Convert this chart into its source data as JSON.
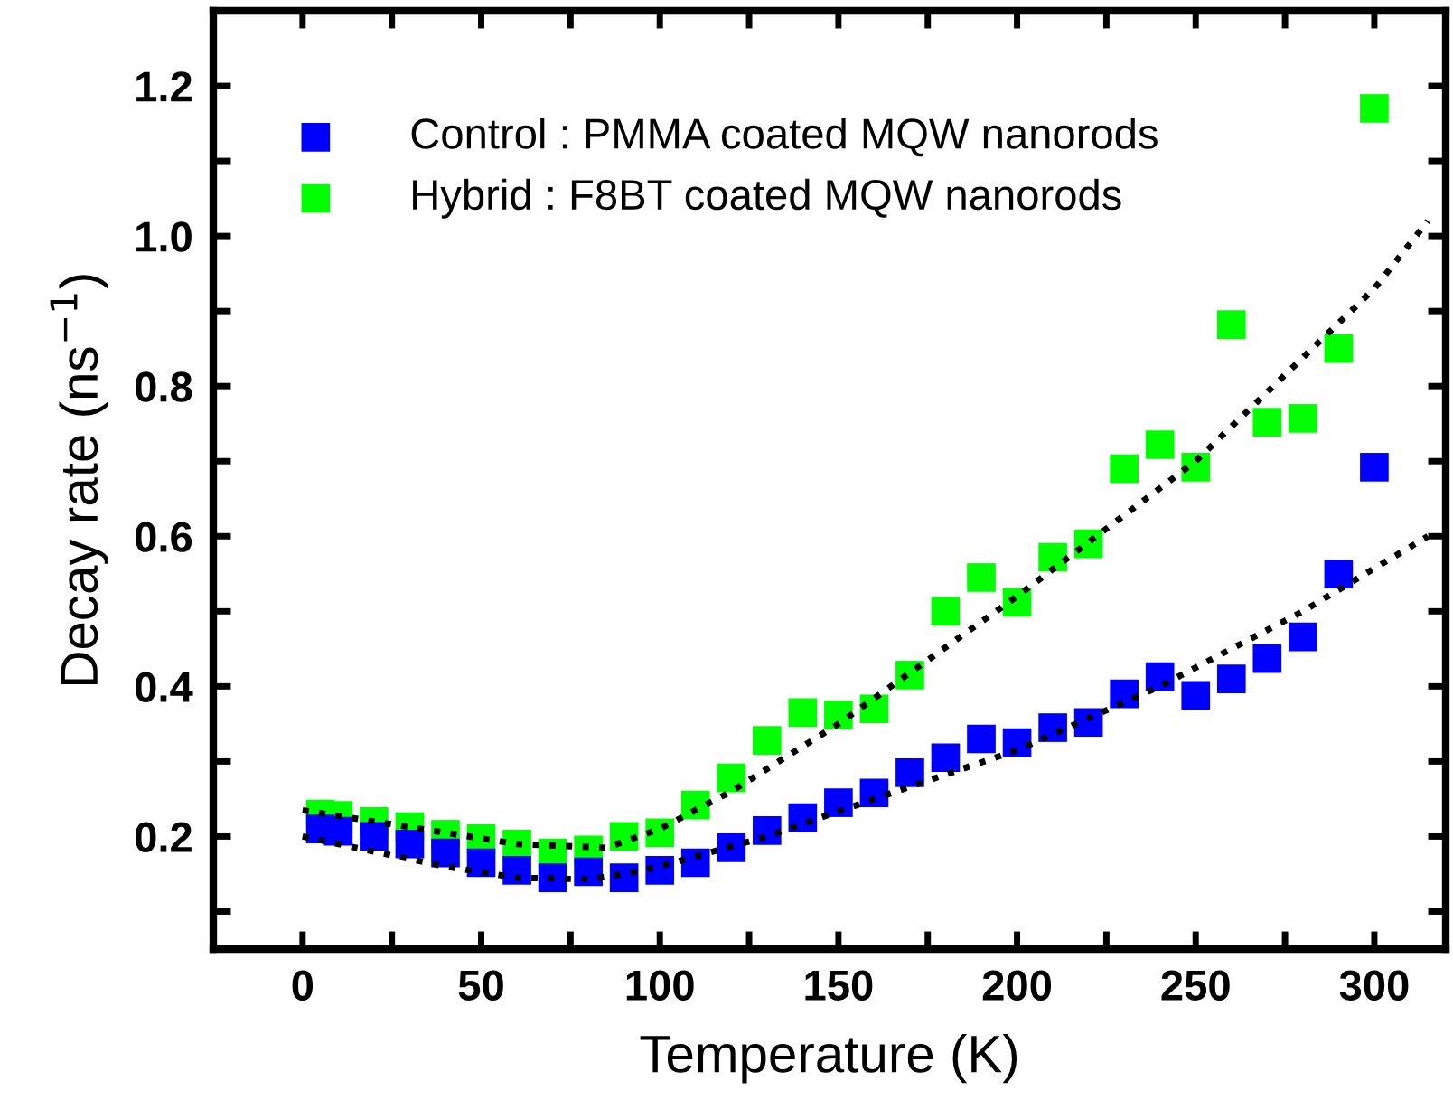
{
  "chart_data": {
    "type": "scatter",
    "xlabel": "Temperature (K)",
    "ylabel": "Decay rate (ns$^{−1}$)",
    "xlim": [
      -25,
      320
    ],
    "ylim": [
      0.05,
      1.3
    ],
    "xticks": [
      0,
      {
        "value": 25,
        "label": null
      },
      50,
      {
        "value": 75,
        "label": null
      },
      100,
      {
        "value": 125,
        "label": null
      },
      150,
      {
        "value": 175,
        "label": null
      },
      200,
      {
        "value": 225,
        "label": null
      },
      250,
      {
        "value": 275,
        "label": null
      },
      300
    ],
    "yticks": [
      {
        "value": 0.1,
        "label": null
      },
      0.2,
      {
        "value": 0.3,
        "label": null
      },
      0.4,
      {
        "value": 0.5,
        "label": null
      },
      0.6,
      {
        "value": 0.7,
        "label": null
      },
      0.8,
      {
        "value": 0.9,
        "label": null
      },
      {
        "value": 1.0,
        "label": "1.0"
      },
      {
        "value": 1.1,
        "label": null
      },
      1.2
    ],
    "marker": "square",
    "grid": false,
    "legend": "top left",
    "series": [
      {
        "name": "Control : PMMA coated MQW nanorods",
        "color": "#0000ff",
        "x": [
          5,
          10,
          20,
          30,
          40,
          50,
          60,
          70,
          80,
          90,
          100,
          110,
          120,
          130,
          140,
          150,
          160,
          170,
          180,
          190,
          200,
          210,
          220,
          230,
          240,
          250,
          260,
          270,
          280,
          290,
          300
        ],
        "values": [
          0.21,
          0.207,
          0.2,
          0.19,
          0.178,
          0.165,
          0.155,
          0.145,
          0.153,
          0.145,
          0.155,
          0.165,
          0.185,
          0.208,
          0.225,
          0.245,
          0.258,
          0.285,
          0.305,
          0.33,
          0.325,
          0.345,
          0.352,
          0.39,
          0.413,
          0.388,
          0.41,
          0.437,
          0.466,
          0.55,
          0.692
        ]
      },
      {
        "name": "Hybrid : F8BT coated MQW nanorods",
        "color": "#00ff00",
        "x": [
          5,
          10,
          20,
          30,
          40,
          50,
          60,
          70,
          80,
          90,
          100,
          110,
          120,
          130,
          140,
          150,
          160,
          170,
          180,
          190,
          200,
          210,
          220,
          230,
          240,
          250,
          260,
          270,
          280,
          290,
          300
        ],
        "values": [
          0.23,
          0.228,
          0.22,
          0.213,
          0.203,
          0.197,
          0.19,
          0.178,
          0.182,
          0.2,
          0.205,
          0.242,
          0.278,
          0.328,
          0.365,
          0.362,
          0.37,
          0.415,
          0.5,
          0.545,
          0.512,
          0.572,
          0.59,
          0.69,
          0.722,
          0.692,
          0.882,
          0.752,
          0.757,
          0.85,
          1.17
        ]
      },
      {
        "type": "line",
        "color": "#000000",
        "marker": "none",
        "line_style": "dotted",
        "x": [
          0,
          20,
          40,
          60,
          80,
          90,
          100,
          130,
          160,
          200,
          240,
          280,
          315
        ],
        "values": [
          0.2,
          0.18,
          0.16,
          0.145,
          0.143,
          0.15,
          0.16,
          0.2,
          0.25,
          0.315,
          0.4,
          0.5,
          0.6
        ]
      },
      {
        "type": "line",
        "color": "#000000",
        "marker": "none",
        "line_style": "dotted",
        "x": [
          0,
          20,
          40,
          60,
          85,
          100,
          120,
          150,
          200,
          250,
          300,
          315
        ],
        "values": [
          0.235,
          0.22,
          0.205,
          0.19,
          0.185,
          0.21,
          0.26,
          0.35,
          0.52,
          0.7,
          0.93,
          1.02
        ]
      }
    ]
  }
}
